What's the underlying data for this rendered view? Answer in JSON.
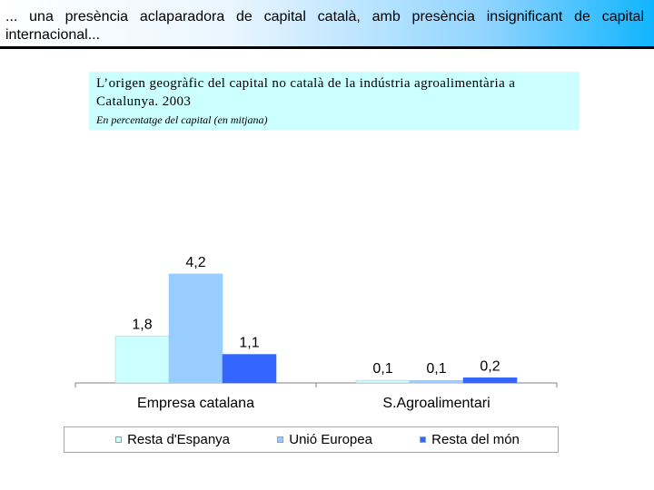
{
  "header": {
    "text": "... una presència aclaparadora de capital català, amb presència insignificant de capital internacional..."
  },
  "chart_data": {
    "type": "bar",
    "title": "L’origen geogràfic del capital no català de la indústria agroalimentària a Catalunya. 2003",
    "subtitle": "En percentatge del capital (en mitjana)",
    "categories": [
      "Empresa catalana",
      "S.Agroalimentari"
    ],
    "series": [
      {
        "name": "Resta d'Espanya",
        "values": [
          1.8,
          0.1
        ],
        "labels": [
          "1,8",
          "0,1"
        ],
        "color": "#ccffff"
      },
      {
        "name": "Unió Europea",
        "values": [
          4.2,
          0.1
        ],
        "labels": [
          "4,2",
          "0,1"
        ],
        "color": "#99ccff"
      },
      {
        "name": "Resta del món",
        "values": [
          1.1,
          0.2
        ],
        "labels": [
          "1,1",
          "0,2"
        ],
        "color": "#3366ff"
      }
    ],
    "ylim": [
      0,
      5
    ],
    "grid": false,
    "legend_position": "bottom",
    "xlabel": "",
    "ylabel": ""
  },
  "colors": {
    "header_accent": "#10b4ff",
    "title_background": "#ccffff"
  }
}
